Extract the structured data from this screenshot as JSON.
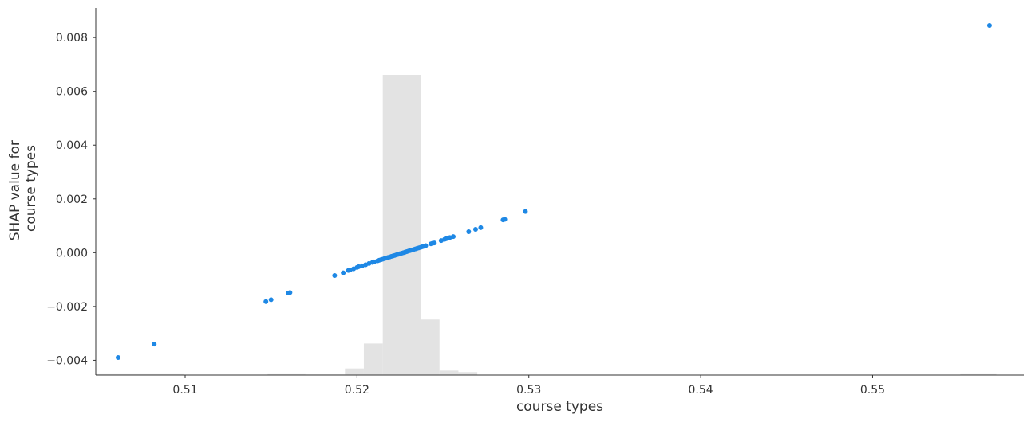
{
  "chart_data": {
    "type": "scatter",
    "title": "",
    "xlabel": "course types",
    "ylabel_lines": [
      "SHAP value for",
      "course types"
    ],
    "xlim": [
      0.5048,
      0.5588
    ],
    "ylim": [
      -0.00455,
      0.0091
    ],
    "x_ticks": [
      {
        "value": 0.51,
        "label": "0.51"
      },
      {
        "value": 0.52,
        "label": "0.52"
      },
      {
        "value": 0.53,
        "label": "0.53"
      },
      {
        "value": 0.54,
        "label": "0.54"
      },
      {
        "value": 0.55,
        "label": "0.55"
      }
    ],
    "y_ticks": [
      {
        "value": -0.004,
        "label": "−0.004"
      },
      {
        "value": -0.002,
        "label": "−0.002"
      },
      {
        "value": 0.0,
        "label": "0.000"
      },
      {
        "value": 0.002,
        "label": "0.002"
      },
      {
        "value": 0.004,
        "label": "0.004"
      },
      {
        "value": 0.006,
        "label": "0.006"
      },
      {
        "value": 0.008,
        "label": "0.008"
      }
    ],
    "grid": false,
    "colors": {
      "points": "#1e88e5",
      "histogram": "#e3e3e3",
      "axis": "#333333"
    },
    "histogram": {
      "description": "feature value distribution",
      "bins": [
        {
          "x0": 0.5048,
          "x1": 0.5099,
          "count": 0.3
        },
        {
          "x0": 0.5099,
          "x1": 0.5148,
          "count": 0.1
        },
        {
          "x0": 0.5148,
          "x1": 0.517,
          "count": 0.3
        },
        {
          "x0": 0.517,
          "x1": 0.5193,
          "count": 0.2
        },
        {
          "x0": 0.5193,
          "x1": 0.5204,
          "count": 2.2
        },
        {
          "x0": 0.5204,
          "x1": 0.5215,
          "count": 10.5
        },
        {
          "x0": 0.5215,
          "x1": 0.5237,
          "count": 100
        },
        {
          "x0": 0.5237,
          "x1": 0.5248,
          "count": 18.5
        },
        {
          "x0": 0.5248,
          "x1": 0.5259,
          "count": 1.5
        },
        {
          "x0": 0.5259,
          "x1": 0.527,
          "count": 1.0
        },
        {
          "x0": 0.527,
          "x1": 0.5551,
          "count": 0.0
        },
        {
          "x0": 0.5551,
          "x1": 0.5572,
          "count": 0.3
        }
      ]
    },
    "series": [
      {
        "x": [
          0.5061,
          0.5082,
          0.5147,
          0.515,
          0.516,
          0.5161,
          0.5187,
          0.5192,
          0.5195,
          0.5196,
          0.5198,
          0.52,
          0.5201,
          0.5203,
          0.5205,
          0.5207,
          0.5209,
          0.521,
          0.5212,
          0.5213,
          0.5214,
          0.5215,
          0.5216,
          0.5217,
          0.5218,
          0.5219,
          0.522,
          0.5221,
          0.5222,
          0.5223,
          0.5224,
          0.5225,
          0.5226,
          0.5227,
          0.5228,
          0.5229,
          0.523,
          0.5231,
          0.5232,
          0.5233,
          0.5234,
          0.5235,
          0.5236,
          0.5237,
          0.5238,
          0.5239,
          0.524,
          0.5243,
          0.5244,
          0.5245,
          0.5249,
          0.5251,
          0.5252,
          0.5253,
          0.5254,
          0.5256,
          0.5265,
          0.5269,
          0.5272,
          0.5285,
          0.5286,
          0.5298,
          0.5568
        ],
        "y": [
          -0.0039,
          -0.0034,
          -0.00182,
          -0.00175,
          -0.0015,
          -0.00148,
          -0.00085,
          -0.00075,
          -0.00066,
          -0.00064,
          -0.0006,
          -0.00055,
          -0.00052,
          -0.00049,
          -0.00045,
          -0.0004,
          -0.00036,
          -0.00034,
          -0.0003,
          -0.00028,
          -0.00026,
          -0.00024,
          -0.00022,
          -0.0002,
          -0.00018,
          -0.00016,
          -0.00014,
          -0.00012,
          -0.0001,
          -8e-05,
          -6e-05,
          -4e-05,
          -2e-05,
          0.0,
          2e-05,
          4e-05,
          6e-05,
          8e-05,
          0.0001,
          0.00012,
          0.00014,
          0.00016,
          0.00018,
          0.0002,
          0.00022,
          0.00024,
          0.00026,
          0.00033,
          0.00035,
          0.00036,
          0.00045,
          0.0005,
          0.00052,
          0.00054,
          0.00056,
          0.0006,
          0.00078,
          0.00087,
          0.00093,
          0.00122,
          0.00124,
          0.00153,
          0.00845
        ]
      }
    ]
  }
}
